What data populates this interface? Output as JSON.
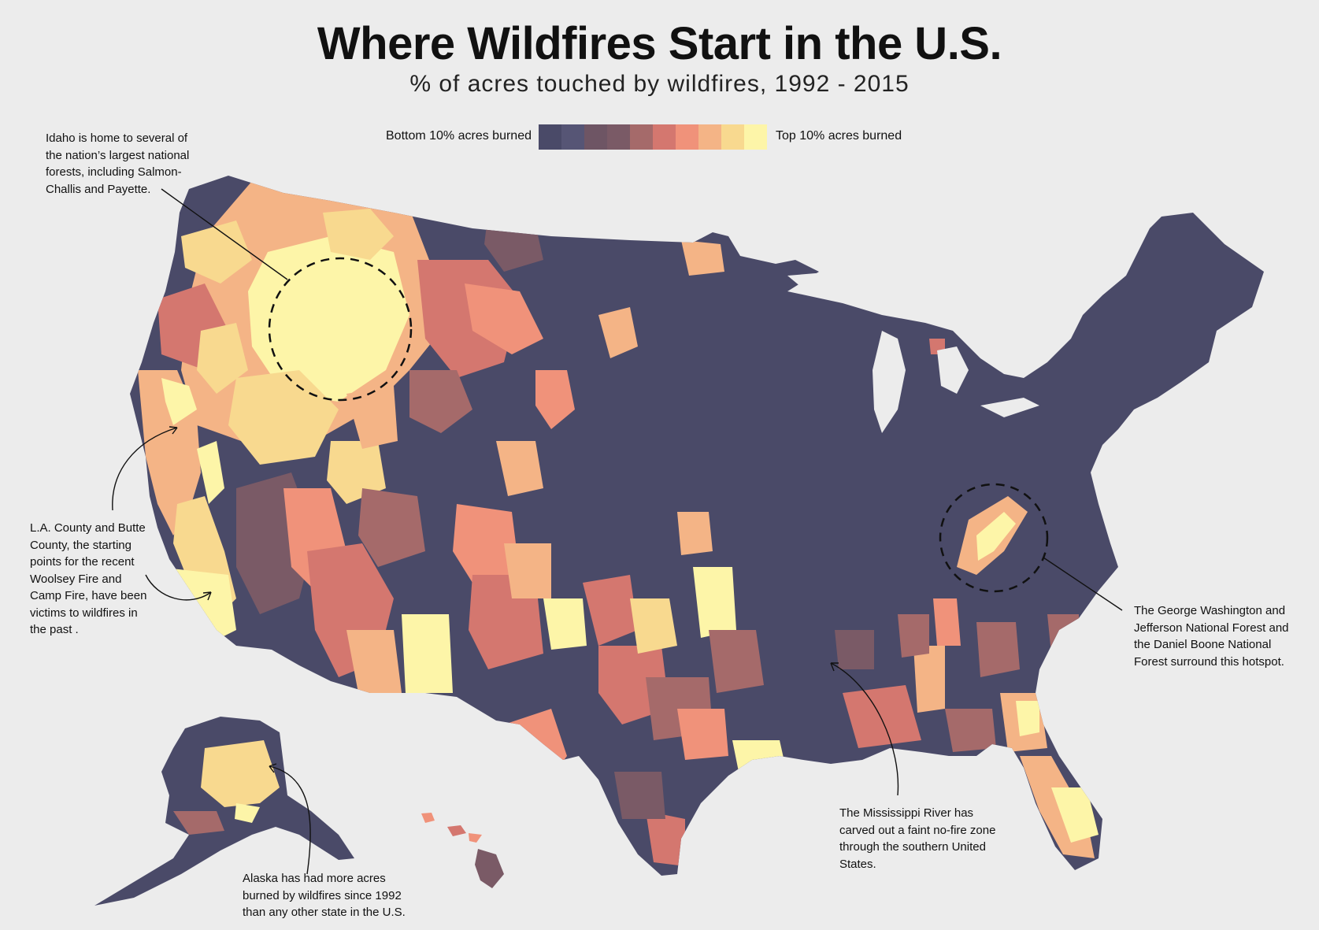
{
  "title": "Where Wildfires Start in the U.S.",
  "subtitle": "% of acres touched by wildfires, 1992 - 2015",
  "legend": {
    "low_label": "Bottom 10% acres burned",
    "high_label": "Top 10% acres burned",
    "colors": [
      "#4a4a68",
      "#565575",
      "#6e5564",
      "#7a5a66",
      "#a56a6a",
      "#d4776f",
      "#f0927a",
      "#f4b486",
      "#f8d98f",
      "#fdf5a8"
    ]
  },
  "annotations": {
    "idaho": "Idaho is home to several of the nation’s largest national forests, including Salmon-Challis and Payette.",
    "la": "L.A. County and Butte County, the starting points for the recent Woolsey Fire and Camp Fire, have been victims to wildfires in the past .",
    "alaska": "Alaska has had more acres burned by wildfires since 1992 than any other state in the U.S.",
    "mississippi": "The Mississippi River has carved out a faint no-fire zone through the southern United States.",
    "appalachia": "The George Washington and Jefferson National Forest and the Daniel Boone National Forest surround this hotspot."
  },
  "colors": {
    "background": "#ececec",
    "base_county": "#4a4a68",
    "hot": "#fdf5a8"
  }
}
